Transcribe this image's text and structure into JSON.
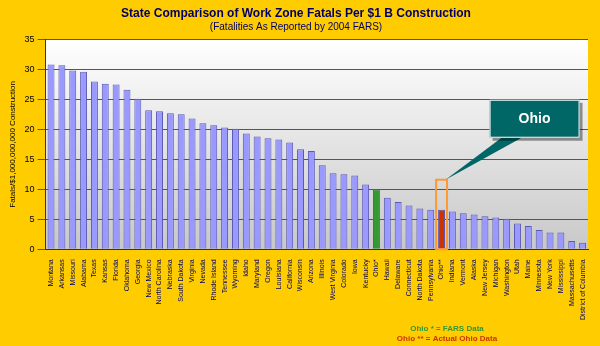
{
  "chart_data": {
    "type": "bar",
    "title": "State Comparison of Work Zone Fatals Per $1 B Construction",
    "subtitle": "(Fatalities As Reported by 2004 FARS)",
    "y_label": "Fatals/$1,000,000,000 Construction",
    "categories": [
      "Montana",
      "Arkansas",
      "Missouri",
      "Alabama",
      "Texas",
      "Kansas",
      "Florida",
      "Oklahoma",
      "Georgia",
      "New Mexico",
      "North Carolina",
      "Nebraska",
      "South Dakota",
      "Virginia",
      "Nevada",
      "Rhode Island",
      "Tennessee",
      "Wyoming",
      "Idaho",
      "Maryland",
      "Oregon",
      "Louisiana",
      "California",
      "Wisconsin",
      "Arizona",
      "Illinois",
      "West Virginia",
      "Colorado",
      "Iowa",
      "Kentucky",
      "Ohio*",
      "Hawaii",
      "Delaware",
      "Connecticut",
      "North Dakota",
      "Pennsylvania",
      "Ohio**",
      "Indiana",
      "Vermont",
      "Alaska",
      "New Jersey",
      "Michigan",
      "Washington",
      "Utah",
      "Maine",
      "Minnesota",
      "New York",
      "Mississippi",
      "Massachusetts",
      "District of Columbia"
    ],
    "values": [
      30.8,
      30.7,
      29.8,
      29.6,
      28.0,
      27.6,
      27.5,
      26.6,
      25.1,
      23.2,
      23.0,
      22.7,
      22.5,
      21.8,
      21.0,
      20.7,
      20.3,
      20.1,
      19.3,
      18.8,
      18.5,
      18.3,
      17.8,
      16.7,
      16.4,
      14.0,
      12.7,
      12.5,
      12.3,
      10.8,
      10.0,
      8.6,
      7.9,
      7.3,
      6.8,
      6.6,
      6.6,
      6.3,
      6.0,
      5.8,
      5.5,
      5.3,
      5.1,
      4.3,
      3.9,
      3.2,
      2.8,
      2.8,
      1.4,
      1.1
    ],
    "colors": [
      "#9999ff",
      "#9999ff",
      "#9999ff",
      "#9999ff",
      "#9999ff",
      "#9999ff",
      "#9999ff",
      "#9999ff",
      "#9999ff",
      "#9999ff",
      "#9999ff",
      "#9999ff",
      "#9999ff",
      "#9999ff",
      "#9999ff",
      "#9999ff",
      "#9999ff",
      "#9999ff",
      "#9999ff",
      "#9999ff",
      "#9999ff",
      "#9999ff",
      "#9999ff",
      "#9999ff",
      "#9999ff",
      "#9999ff",
      "#9999ff",
      "#9999ff",
      "#9999ff",
      "#9999ff",
      "#339933",
      "#9999ff",
      "#9999ff",
      "#9999ff",
      "#9999ff",
      "#9999ff",
      "#cc3300",
      "#9999ff",
      "#9999ff",
      "#9999ff",
      "#9999ff",
      "#9999ff",
      "#9999ff",
      "#9999ff",
      "#9999ff",
      "#9999ff",
      "#9999ff",
      "#9999ff",
      "#9999ff",
      "#9999ff"
    ],
    "ylim": [
      0,
      35
    ],
    "yticks": [
      0,
      5,
      10,
      15,
      20,
      25,
      30,
      35
    ],
    "grid": true,
    "annotation": {
      "text": "Ohio",
      "category": "Ohio**"
    },
    "notes": [
      {
        "text": "Ohio * = FARS Data",
        "color": "#339933"
      },
      {
        "text": "Ohio ** = Actual Ohio Data",
        "color": "#cc3300"
      }
    ]
  }
}
